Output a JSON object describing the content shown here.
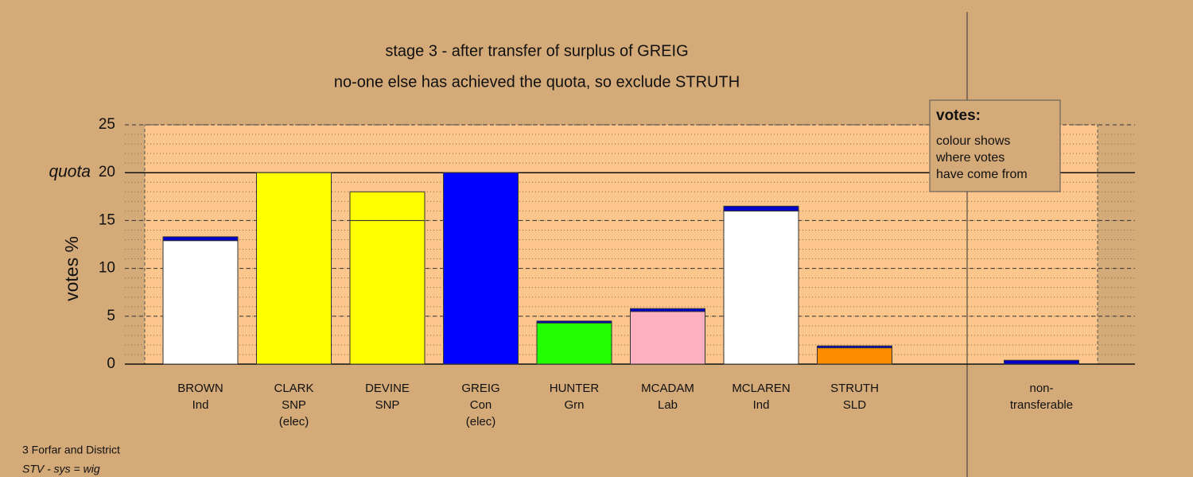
{
  "chart_data": {
    "type": "stacked-bar",
    "title": "stage 3 - after transfer of surplus of GREIG",
    "subtitle": "no-one else has achieved the quota, so exclude STRUTH",
    "y_label": "votes %",
    "quota_label": "quota",
    "quota": 20,
    "ylim": [
      0,
      25
    ],
    "yticks": [
      0,
      5,
      10,
      15,
      20,
      25
    ],
    "minor_grid_step": 1,
    "grid": true,
    "bars": [
      {
        "label": [
          "BROWN",
          "Ind"
        ],
        "segments": [
          {
            "color": "#ffffff",
            "value": 12.9
          },
          {
            "color": "#0000cc",
            "value": 0.4
          }
        ]
      },
      {
        "label": [
          "CLARK",
          "SNP",
          "(elec)"
        ],
        "segments": [
          {
            "color": "#ffff00",
            "value": 20
          }
        ]
      },
      {
        "label": [
          "DEVINE",
          "SNP"
        ],
        "segments": [
          {
            "color": "#ffff00",
            "value": 15
          },
          {
            "color": "#ffff00",
            "value": 3
          }
        ]
      },
      {
        "label": [
          "GREIG",
          "Con",
          "(elec)"
        ],
        "segments": [
          {
            "color": "#0000ff",
            "value": 20
          }
        ]
      },
      {
        "label": [
          "HUNTER",
          "Grn"
        ],
        "segments": [
          {
            "color": "#22ff00",
            "value": 4.3
          },
          {
            "color": "#0000cc",
            "value": 0.2
          }
        ]
      },
      {
        "label": [
          "MCADAM",
          "Lab"
        ],
        "segments": [
          {
            "color": "#ffb0c0",
            "value": 5.5
          },
          {
            "color": "#0000cc",
            "value": 0.3
          }
        ]
      },
      {
        "label": [
          "MCLAREN",
          "Ind"
        ],
        "segments": [
          {
            "color": "#ffffff",
            "value": 16
          },
          {
            "color": "#0000cc",
            "value": 0.5
          }
        ]
      },
      {
        "label": [
          "STRUTH",
          "SLD"
        ],
        "segments": [
          {
            "color": "#ff8c00",
            "value": 1.7
          },
          {
            "color": "#0000cc",
            "value": 0.2
          }
        ]
      },
      {
        "label": [
          "non-",
          "transferable"
        ],
        "segments": [
          {
            "color": "#0000cc",
            "value": 0.4
          }
        ]
      }
    ],
    "legend": {
      "title": "votes:",
      "lines": [
        "colour shows",
        "where votes",
        "have come from"
      ]
    },
    "footer": [
      "3 Forfar and District",
      "STV - sys = wig"
    ]
  }
}
